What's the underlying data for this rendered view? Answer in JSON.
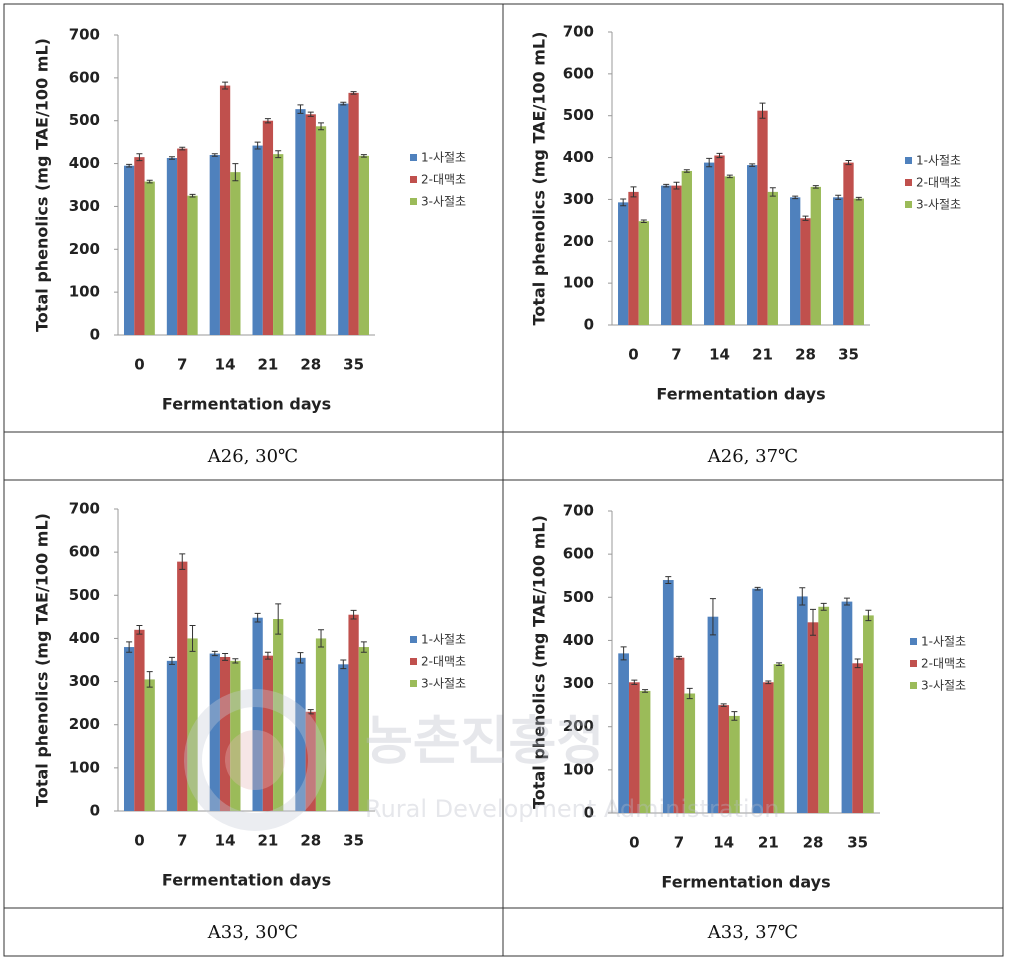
{
  "chart_data": [
    {
      "type": "bar",
      "caption": "A26, 30℃",
      "y_label": "Total phenolics (mg TAE/100 mL)",
      "x_label": "Fermentation days",
      "categories": [
        "0",
        "7",
        "14",
        "21",
        "28",
        "35"
      ],
      "ylim": [
        0,
        700
      ],
      "yticks": [
        0,
        100,
        200,
        300,
        400,
        500,
        600,
        700
      ],
      "legend": "right",
      "series": [
        {
          "name": "1-사절초",
          "color": "#4f81bd",
          "values": [
            395,
            413,
            420,
            442,
            527,
            540
          ],
          "errors": [
            3,
            3,
            3,
            8,
            10,
            3
          ]
        },
        {
          "name": "2-대맥초",
          "color": "#c0504d",
          "values": [
            415,
            435,
            582,
            500,
            515,
            565
          ],
          "errors": [
            8,
            3,
            8,
            5,
            5,
            3
          ]
        },
        {
          "name": "3-사절초",
          "color": "#9bbb59",
          "values": [
            358,
            325,
            380,
            422,
            487,
            418
          ],
          "errors": [
            3,
            3,
            20,
            8,
            8,
            3
          ]
        }
      ]
    },
    {
      "type": "bar",
      "caption": "A26, 37℃",
      "y_label": "Total phenolics (mg TAE/100 mL)",
      "x_label": "Fermentation days",
      "categories": [
        "0",
        "7",
        "14",
        "21",
        "28",
        "35"
      ],
      "ylim": [
        0,
        700
      ],
      "yticks": [
        0,
        100,
        200,
        300,
        400,
        500,
        600,
        700
      ],
      "legend": "right",
      "series": [
        {
          "name": "1-사절초",
          "color": "#4f81bd",
          "values": [
            293,
            333,
            388,
            382,
            305,
            305
          ],
          "errors": [
            8,
            3,
            10,
            3,
            3,
            5
          ]
        },
        {
          "name": "2-대맥초",
          "color": "#c0504d",
          "values": [
            318,
            333,
            405,
            512,
            255,
            388
          ],
          "errors": [
            12,
            8,
            5,
            18,
            5,
            5
          ]
        },
        {
          "name": "3-사절초",
          "color": "#9bbb59",
          "values": [
            248,
            368,
            355,
            318,
            330,
            302
          ],
          "errors": [
            3,
            3,
            3,
            10,
            3,
            3
          ]
        }
      ]
    },
    {
      "type": "bar",
      "caption": "A33, 30℃",
      "y_label": "Total phenolics (mg TAE/100 mL)",
      "x_label": "Fermentation days",
      "categories": [
        "0",
        "7",
        "14",
        "21",
        "28",
        "35"
      ],
      "ylim": [
        0,
        700
      ],
      "yticks": [
        0,
        100,
        200,
        300,
        400,
        500,
        600,
        700
      ],
      "legend": "right",
      "series": [
        {
          "name": "1-사절초",
          "color": "#4f81bd",
          "values": [
            380,
            348,
            365,
            448,
            355,
            340
          ],
          "errors": [
            12,
            8,
            5,
            10,
            12,
            10
          ]
        },
        {
          "name": "2-대맥초",
          "color": "#c0504d",
          "values": [
            420,
            578,
            357,
            360,
            230,
            455
          ],
          "errors": [
            10,
            18,
            8,
            8,
            5,
            10
          ]
        },
        {
          "name": "3-사절초",
          "color": "#9bbb59",
          "values": [
            305,
            400,
            348,
            445,
            400,
            380
          ],
          "errors": [
            18,
            30,
            5,
            35,
            20,
            12
          ]
        }
      ]
    },
    {
      "type": "bar",
      "caption": "A33, 37℃",
      "y_label": "Total phenolics (mg TAE/100 mL)",
      "x_label": "Fermentation days",
      "categories": [
        "0",
        "7",
        "14",
        "21",
        "28",
        "35"
      ],
      "ylim": [
        0,
        700
      ],
      "yticks": [
        0,
        100,
        200,
        300,
        400,
        500,
        600,
        700
      ],
      "legend": "right",
      "series": [
        {
          "name": "1-사절초",
          "color": "#4f81bd",
          "values": [
            370,
            540,
            455,
            520,
            502,
            490
          ],
          "errors": [
            15,
            8,
            42,
            3,
            20,
            8
          ]
        },
        {
          "name": "2-대맥초",
          "color": "#c0504d",
          "values": [
            303,
            360,
            250,
            303,
            442,
            347
          ],
          "errors": [
            5,
            3,
            3,
            3,
            30,
            10
          ]
        },
        {
          "name": "3-사절초",
          "color": "#9bbb59",
          "values": [
            283,
            277,
            225,
            345,
            478,
            458
          ],
          "errors": [
            3,
            12,
            10,
            3,
            8,
            12
          ]
        }
      ]
    }
  ],
  "watermark": {
    "title": "농촌진흥청",
    "subtitle": "Rural Development Administration"
  }
}
